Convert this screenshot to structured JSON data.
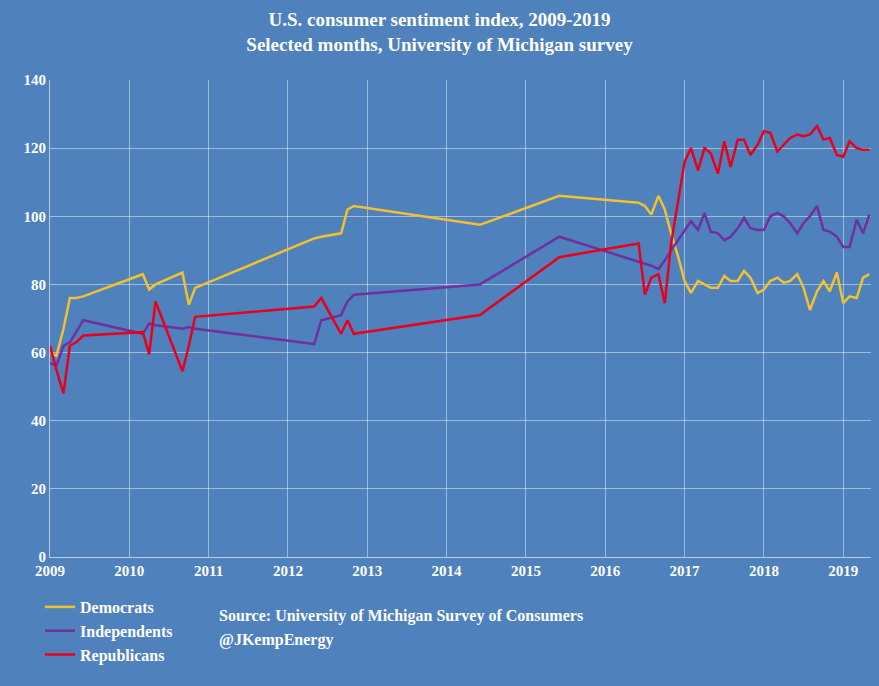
{
  "chart_data": {
    "type": "line",
    "title": "U.S. consumer sentiment index, 2009-2019",
    "subtitle": "Selected months, University of Michigan survey",
    "annotations": [
      "Source: University of Michigan Survey of Consumers",
      "@JKempEnergy"
    ],
    "x": [
      2009,
      2009.08,
      2009.17,
      2009.25,
      2009.33,
      2009.42,
      2010.17,
      2010.25,
      2010.33,
      2010.67,
      2010.75,
      2010.83,
      2012.33,
      2012.42,
      2012.67,
      2012.75,
      2012.83,
      2014.42,
      2015.42,
      2016.42,
      2016.5,
      2016.58,
      2016.67,
      2016.75,
      2016.83,
      2016.92,
      2017,
      2017.08,
      2017.17,
      2017.25,
      2017.33,
      2017.42,
      2017.5,
      2017.58,
      2017.67,
      2017.75,
      2017.83,
      2017.92,
      2018,
      2018.08,
      2018.17,
      2018.25,
      2018.33,
      2018.42,
      2018.5,
      2018.58,
      2018.67,
      2018.75,
      2018.83,
      2018.92,
      2019,
      2019.08,
      2019.17,
      2019.25,
      2019.33
    ],
    "series": [
      {
        "name": "Democrats",
        "color": "#f2c12e",
        "values": [
          60,
          59,
          67,
          76,
          76,
          76.5,
          83,
          78.5,
          80,
          83.5,
          74,
          79,
          93.5,
          94,
          95,
          102,
          103,
          97.5,
          106,
          104,
          103,
          100.5,
          106,
          102,
          95,
          88,
          81,
          77.5,
          81,
          80,
          79,
          79,
          82.5,
          81,
          81,
          84,
          82,
          77.5,
          78.5,
          81,
          82,
          80.5,
          81,
          83,
          79,
          72.5,
          78,
          81,
          78,
          83.5,
          74.5,
          76.5,
          76,
          82,
          83
        ]
      },
      {
        "name": "Independents",
        "color": "#7030a0",
        "values": [
          57,
          56,
          62,
          63,
          66,
          69.5,
          65.5,
          68.5,
          68,
          67,
          67.5,
          67,
          62.5,
          69.5,
          71,
          75,
          77,
          80,
          94,
          86.5,
          86,
          85.5,
          84.5,
          87,
          90,
          93,
          96,
          98.5,
          96,
          101,
          95.5,
          95,
          93,
          94,
          96.5,
          99.5,
          96.5,
          96,
          96,
          100,
          101,
          100,
          98,
          95,
          98,
          100,
          103,
          96,
          95.5,
          94,
          91,
          91,
          99,
          95,
          100.5
        ]
      },
      {
        "name": "Republicans",
        "color": "#e8001c",
        "values": [
          62,
          55,
          48,
          62,
          63,
          65,
          66,
          59.5,
          75,
          54.5,
          62,
          70.5,
          73.5,
          76,
          65.5,
          69.5,
          65.5,
          71,
          88,
          92,
          77,
          82,
          83,
          74.5,
          92,
          105,
          116,
          120,
          113.5,
          120,
          118.5,
          112.5,
          122,
          114.5,
          122.5,
          122.5,
          118,
          121,
          125,
          124.5,
          119,
          121,
          123,
          124,
          123.5,
          124,
          126.5,
          122.5,
          123,
          118,
          117.5,
          122,
          120,
          119.5,
          119.5
        ]
      }
    ],
    "xlim": [
      2009,
      2019.35
    ],
    "xticks": [
      2009,
      2010,
      2011,
      2012,
      2013,
      2014,
      2015,
      2016,
      2017,
      2018,
      2019
    ],
    "ylim": [
      0,
      140
    ],
    "yticks": [
      0,
      20,
      40,
      60,
      80,
      100,
      120,
      140
    ],
    "grid": true,
    "legend": "bottom left"
  }
}
